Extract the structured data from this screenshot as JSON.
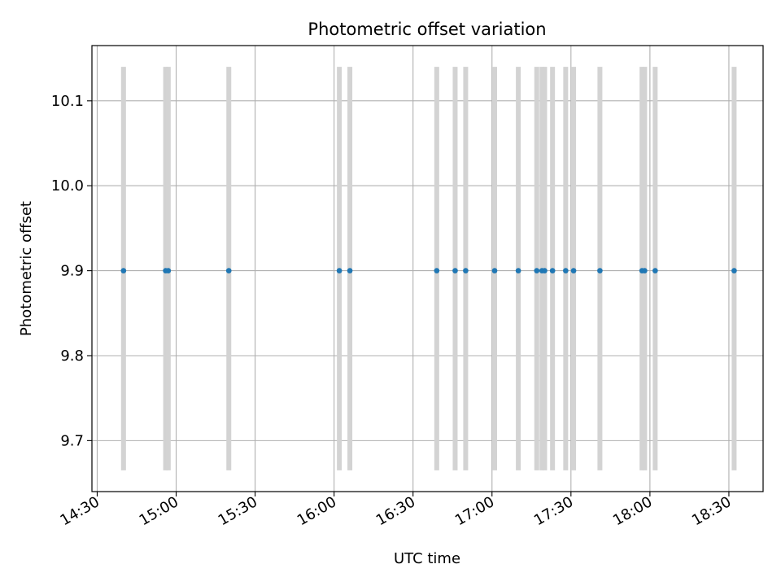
{
  "chart_data": {
    "type": "scatter",
    "title": "Photometric offset variation",
    "xlabel": "UTC time",
    "ylabel": "Photometric offset",
    "x_ticks": [
      "14:30",
      "15:00",
      "15:30",
      "16:00",
      "16:30",
      "17:00",
      "17:30",
      "18:00",
      "18:30"
    ],
    "x_tick_minutes": [
      870,
      900,
      930,
      960,
      990,
      1020,
      1050,
      1080,
      1110
    ],
    "y_ticks": [
      9.7,
      9.8,
      9.9,
      10.0,
      10.1
    ],
    "y_tick_labels": [
      "9.7",
      "9.8",
      "9.9",
      "10.0",
      "10.1"
    ],
    "xlim": [
      "14:28",
      "18:43"
    ],
    "ylim": [
      9.64,
      10.165
    ],
    "grid": true,
    "colors": {
      "points": "#1f77b4",
      "error_bars": "#d3d3d3",
      "grid": "#b0b0b0"
    },
    "points": [
      {
        "time": "14:40",
        "offset": 9.9
      },
      {
        "time": "14:56",
        "offset": 9.9
      },
      {
        "time": "14:57",
        "offset": 9.9
      },
      {
        "time": "15:20",
        "offset": 9.9
      },
      {
        "time": "16:02",
        "offset": 9.9
      },
      {
        "time": "16:06",
        "offset": 9.9
      },
      {
        "time": "16:39",
        "offset": 9.9
      },
      {
        "time": "16:46",
        "offset": 9.9
      },
      {
        "time": "16:50",
        "offset": 9.9
      },
      {
        "time": "17:01",
        "offset": 9.9
      },
      {
        "time": "17:10",
        "offset": 9.9
      },
      {
        "time": "17:17",
        "offset": 9.9
      },
      {
        "time": "17:19",
        "offset": 9.9
      },
      {
        "time": "17:20",
        "offset": 9.9
      },
      {
        "time": "17:23",
        "offset": 9.9
      },
      {
        "time": "17:28",
        "offset": 9.9
      },
      {
        "time": "17:31",
        "offset": 9.9
      },
      {
        "time": "17:41",
        "offset": 9.9
      },
      {
        "time": "17:57",
        "offset": 9.9
      },
      {
        "time": "17:58",
        "offset": 9.9
      },
      {
        "time": "18:02",
        "offset": 9.9
      },
      {
        "time": "18:32",
        "offset": 9.9
      }
    ],
    "error_bar_range": [
      9.665,
      10.14
    ]
  }
}
